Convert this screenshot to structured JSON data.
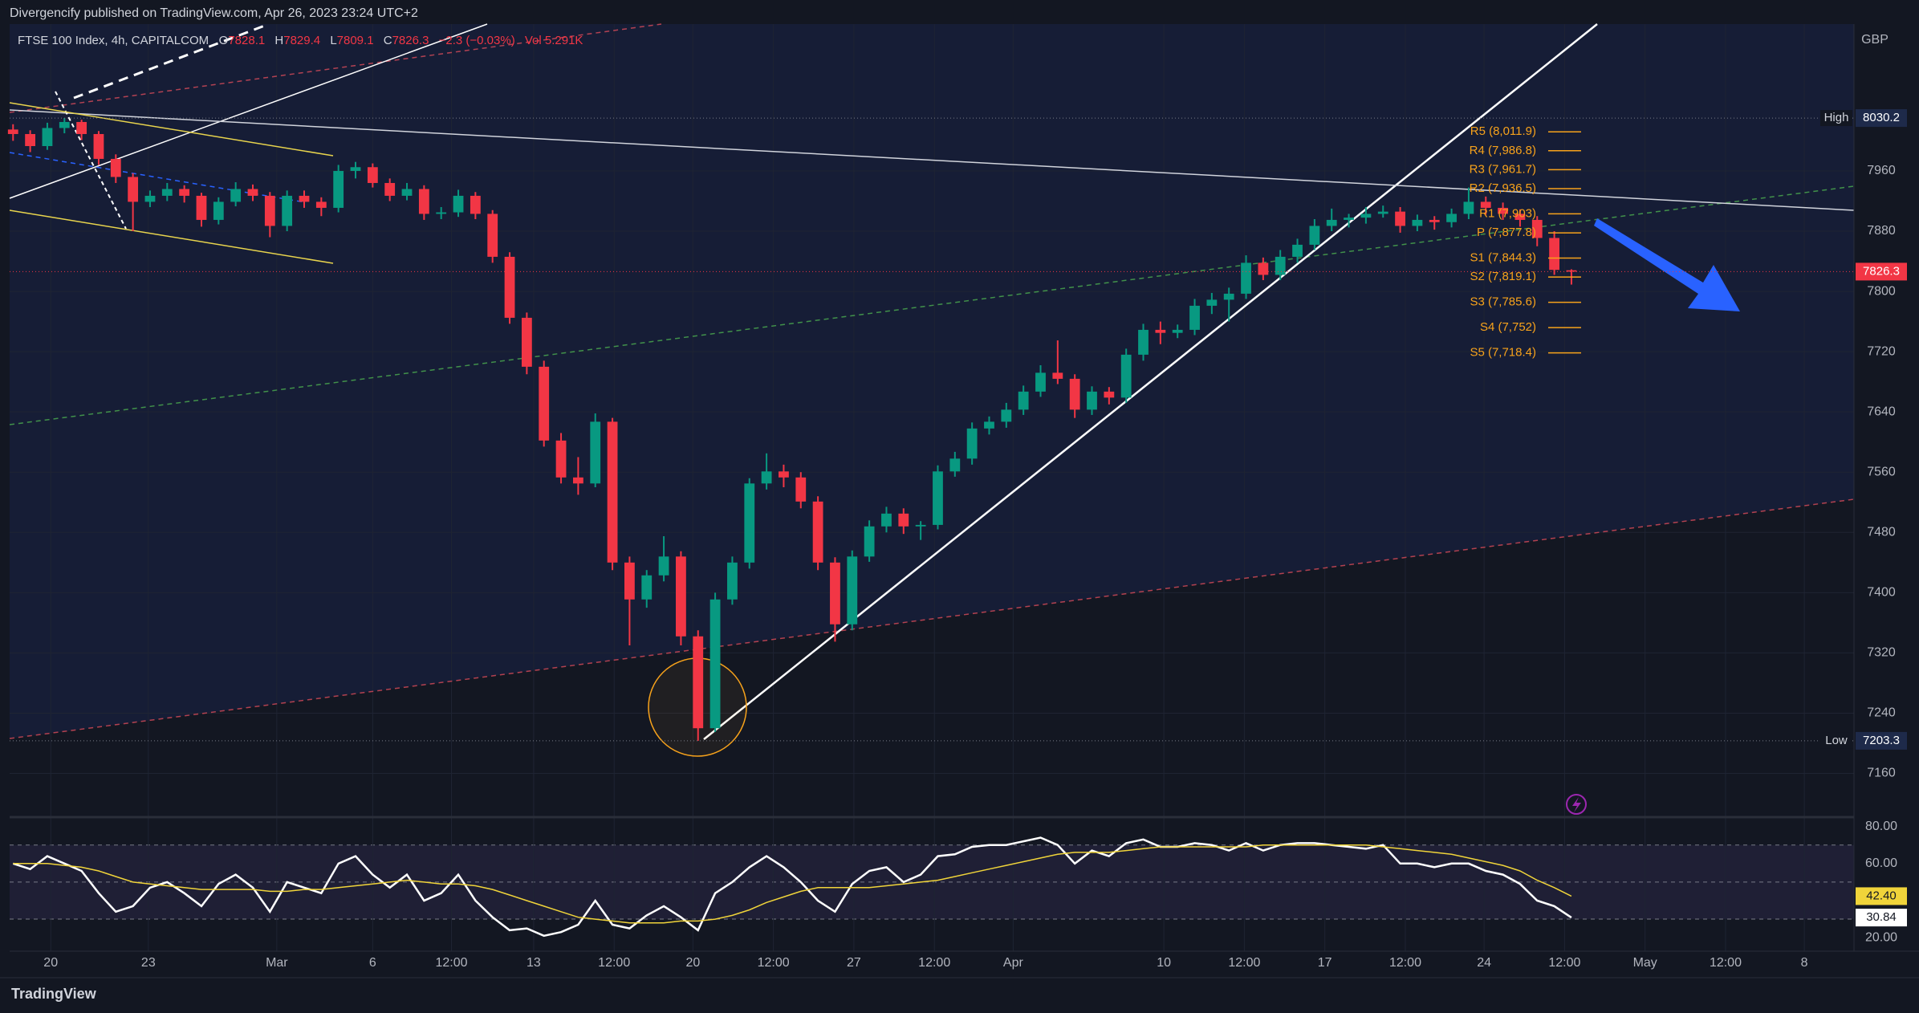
{
  "publisher": "Divergencify published on TradingView.com, Apr 26, 2023 23:24 UTC+2",
  "brand": "TradingView",
  "chart_data": [
    {
      "type": "candlestick",
      "symbol": "FTSE 100 Index, 4h, CAPITALCOM",
      "ohlc_labels": [
        "O",
        "H",
        "L",
        "C"
      ],
      "change": "−2.3 (−0.03%)",
      "volume": "Vol 5.291K",
      "currency": "GBP",
      "colors": {
        "up": "#089981",
        "down": "#f23645"
      },
      "grid": true,
      "xlim": [
        -0.2,
        107.5
      ],
      "ylim": [
        7103,
        8155
      ],
      "yticks": [
        7160,
        7240,
        7320,
        7400,
        7480,
        7560,
        7640,
        7720,
        7800,
        7880,
        7960
      ],
      "high": {
        "label": "High",
        "value": 8030.2
      },
      "low": {
        "label": "Low",
        "value": 7203.3
      },
      "pivots": [
        {
          "label": "R5 (8,011.9)",
          "value": 8011.9
        },
        {
          "label": "R4 (7,986.8)",
          "value": 7986.8
        },
        {
          "label": "R3 (7,961.7)",
          "value": 7961.7
        },
        {
          "label": "R2 (7,936.5)",
          "value": 7936.5
        },
        {
          "label": "R1 (7,903)",
          "value": 7903
        },
        {
          "label": "P (7,877.8)",
          "value": 7877.8
        },
        {
          "label": "S1 (7,844.3)",
          "value": 7844.3
        },
        {
          "label": "S2 (7,819.1)",
          "value": 7819.1
        },
        {
          "label": "S3 (7,785.6)",
          "value": 7785.6
        },
        {
          "label": "S4 (7,752)",
          "value": 7752
        },
        {
          "label": "S5 (7,718.4)",
          "value": 7718.4
        }
      ],
      "candles": [
        [
          8015,
          8022,
          8000,
          8009
        ],
        [
          8009,
          8014,
          7985,
          7993
        ],
        [
          7993,
          8024,
          7988,
          8017
        ],
        [
          8017,
          8030.2,
          8010,
          8025
        ],
        [
          8025,
          8028,
          8001,
          8009
        ],
        [
          8009,
          8013,
          7968,
          7976
        ],
        [
          7976,
          7982,
          7944,
          7952
        ],
        [
          7952,
          7957,
          7880,
          7919
        ],
        [
          7919,
          7934,
          7912,
          7927
        ],
        [
          7927,
          7944,
          7920,
          7936
        ],
        [
          7936,
          7941,
          7918,
          7927
        ],
        [
          7927,
          7931,
          7886,
          7895
        ],
        [
          7895,
          7925,
          7889,
          7919
        ],
        [
          7919,
          7945,
          7913,
          7936
        ],
        [
          7936,
          7942,
          7920,
          7927
        ],
        [
          7927,
          7932,
          7872,
          7887
        ],
        [
          7887,
          7934,
          7880,
          7927
        ],
        [
          7927,
          7934,
          7911,
          7919
        ],
        [
          7919,
          7925,
          7900,
          7911
        ],
        [
          7911,
          7968,
          7905,
          7960
        ],
        [
          7960,
          7972,
          7950,
          7965
        ],
        [
          7965,
          7970,
          7938,
          7944
        ],
        [
          7944,
          7950,
          7920,
          7927
        ],
        [
          7927,
          7944,
          7921,
          7936
        ],
        [
          7936,
          7941,
          7895,
          7903
        ],
        [
          7903,
          7912,
          7896,
          7905
        ],
        [
          7905,
          7935,
          7899,
          7927
        ],
        [
          7927,
          7932,
          7896,
          7903
        ],
        [
          7903,
          7908,
          7838,
          7846
        ],
        [
          7846,
          7852,
          7757,
          7765
        ],
        [
          7765,
          7772,
          7690,
          7700
        ],
        [
          7700,
          7708,
          7594,
          7602
        ],
        [
          7602,
          7612,
          7545,
          7553
        ],
        [
          7553,
          7580,
          7530,
          7545
        ],
        [
          7545,
          7638,
          7540,
          7627
        ],
        [
          7627,
          7632,
          7430,
          7440
        ],
        [
          7440,
          7448,
          7330,
          7391
        ],
        [
          7391,
          7430,
          7380,
          7423
        ],
        [
          7423,
          7475,
          7415,
          7448
        ],
        [
          7448,
          7455,
          7330,
          7342
        ],
        [
          7342,
          7350,
          7203.3,
          7220
        ],
        [
          7220,
          7400,
          7215,
          7391
        ],
        [
          7391,
          7448,
          7384,
          7440
        ],
        [
          7440,
          7552,
          7432,
          7545
        ],
        [
          7545,
          7585,
          7537,
          7561
        ],
        [
          7561,
          7570,
          7540,
          7553
        ],
        [
          7553,
          7560,
          7512,
          7521
        ],
        [
          7521,
          7528,
          7430,
          7440
        ],
        [
          7440,
          7447,
          7335,
          7358
        ],
        [
          7358,
          7456,
          7350,
          7448
        ],
        [
          7448,
          7496,
          7441,
          7488
        ],
        [
          7488,
          7514,
          7480,
          7505
        ],
        [
          7505,
          7512,
          7478,
          7488
        ],
        [
          7488,
          7495,
          7470,
          7490
        ],
        [
          7490,
          7569,
          7484,
          7561
        ],
        [
          7561,
          7587,
          7554,
          7578
        ],
        [
          7578,
          7626,
          7570,
          7618
        ],
        [
          7618,
          7634,
          7610,
          7627
        ],
        [
          7627,
          7652,
          7619,
          7643
        ],
        [
          7643,
          7675,
          7636,
          7667
        ],
        [
          7667,
          7702,
          7660,
          7692
        ],
        [
          7692,
          7735,
          7677,
          7684
        ],
        [
          7684,
          7690,
          7632,
          7643
        ],
        [
          7643,
          7674,
          7636,
          7667
        ],
        [
          7667,
          7673,
          7650,
          7659
        ],
        [
          7659,
          7724,
          7652,
          7716
        ],
        [
          7716,
          7757,
          7708,
          7749
        ],
        [
          7749,
          7760,
          7730,
          7745
        ],
        [
          7745,
          7756,
          7738,
          7749
        ],
        [
          7749,
          7790,
          7742,
          7781
        ],
        [
          7781,
          7798,
          7770,
          7789
        ],
        [
          7789,
          7805,
          7760,
          7797
        ],
        [
          7797,
          7848,
          7790,
          7838
        ],
        [
          7838,
          7845,
          7815,
          7822
        ],
        [
          7822,
          7855,
          7815,
          7846
        ],
        [
          7846,
          7870,
          7838,
          7862
        ],
        [
          7862,
          7896,
          7855,
          7887
        ],
        [
          7887,
          7910,
          7880,
          7895
        ],
        [
          7895,
          7903,
          7885,
          7898
        ],
        [
          7898,
          7912,
          7890,
          7903
        ],
        [
          7903,
          7914,
          7898,
          7906
        ],
        [
          7906,
          7912,
          7878,
          7887
        ],
        [
          7887,
          7902,
          7880,
          7895
        ],
        [
          7895,
          7900,
          7882,
          7892
        ],
        [
          7892,
          7910,
          7885,
          7903
        ],
        [
          7903,
          7938,
          7896,
          7919
        ],
        [
          7919,
          7926,
          7902,
          7911
        ],
        [
          7911,
          7918,
          7895,
          7903
        ],
        [
          7903,
          7909,
          7886,
          7895
        ],
        [
          7895,
          7900,
          7860,
          7871
        ],
        [
          7871,
          7880,
          7822,
          7828.6
        ],
        [
          7828.1,
          7829.4,
          7809.1,
          7826.3
        ]
      ]
    },
    {
      "type": "line",
      "grid": true,
      "xlim": [
        -0.2,
        107.5
      ],
      "ylim": [
        12.7,
        84.6
      ],
      "yticks": [
        {
          "value": 80,
          "label": "80.00"
        },
        {
          "value": 60,
          "label": "60.00"
        },
        {
          "value": 20,
          "label": "20.00"
        }
      ],
      "levels": [
        70,
        50,
        30
      ],
      "xticks": [
        {
          "value": 2.2,
          "label": "20"
        },
        {
          "value": 7.9,
          "label": "23"
        },
        {
          "value": 15.4,
          "label": "Mar"
        },
        {
          "value": 21,
          "label": "6"
        },
        {
          "value": 25.6,
          "label": "12:00"
        },
        {
          "value": 30.4,
          "label": "13"
        },
        {
          "value": 35.1,
          "label": "12:00"
        },
        {
          "value": 39.7,
          "label": "20"
        },
        {
          "value": 44.4,
          "label": "12:00"
        },
        {
          "value": 49.1,
          "label": "27"
        },
        {
          "value": 53.8,
          "label": "12:00"
        },
        {
          "value": 58.4,
          "label": "Apr"
        },
        {
          "value": 67.2,
          "label": "10"
        },
        {
          "value": 71.9,
          "label": "12:00"
        },
        {
          "value": 76.6,
          "label": "17"
        },
        {
          "value": 81.3,
          "label": "12:00"
        },
        {
          "value": 85.9,
          "label": "24"
        },
        {
          "value": 90.6,
          "label": "12:00"
        },
        {
          "value": 95.3,
          "label": "May"
        },
        {
          "value": 100,
          "label": "12:00"
        },
        {
          "value": 104.6,
          "label": "8"
        }
      ],
      "series": [
        {
          "color": "#ffffff",
          "values": [
            60,
            57,
            64,
            60,
            56,
            44,
            34,
            37,
            47,
            50,
            44,
            37,
            49,
            54,
            47,
            34,
            50,
            47,
            44,
            60,
            64,
            54,
            47,
            54,
            40,
            44,
            54,
            40,
            31,
            24,
            25,
            21,
            23,
            27,
            40,
            27,
            25,
            32,
            37,
            31,
            24,
            44,
            50,
            58,
            64,
            58,
            50,
            40,
            34,
            49,
            56,
            58,
            50,
            54,
            64,
            65,
            69,
            70,
            70,
            72,
            74,
            70,
            60,
            67,
            64,
            71,
            73,
            69,
            69,
            71,
            70,
            67,
            71,
            67,
            70,
            71,
            71,
            70,
            69,
            68,
            70,
            60,
            60,
            58,
            60,
            60,
            56,
            54,
            49,
            40,
            37,
            30.84
          ],
          "value_labels": [
            null,
            null,
            null,
            null,
            null,
            null,
            null,
            null,
            null,
            null,
            null,
            null,
            null,
            null,
            null,
            null,
            null,
            null,
            null,
            null,
            null,
            null,
            null,
            null,
            null,
            null,
            null,
            null,
            null,
            null,
            null,
            null,
            null,
            null,
            null,
            null,
            null,
            null,
            null,
            null,
            null,
            null,
            null,
            null,
            null,
            null,
            null,
            null,
            null,
            null,
            null,
            null,
            null,
            null,
            null,
            null,
            null,
            null,
            null,
            null,
            null,
            null,
            null,
            null,
            null,
            null,
            null,
            null,
            null,
            null,
            null,
            null,
            null,
            null,
            null,
            null,
            null,
            null,
            null,
            null,
            null,
            null,
            null,
            null,
            null,
            null,
            null,
            null,
            null,
            null,
            null,
            "30.84"
          ]
        },
        {
          "color": "#f0d43a",
          "values": [
            60,
            60,
            60,
            59,
            58,
            56,
            53,
            50,
            49,
            48,
            47,
            46,
            46,
            46,
            46,
            45,
            45,
            46,
            46,
            47,
            48,
            49,
            50,
            51,
            50,
            49,
            49,
            48,
            46,
            43,
            40,
            37,
            34,
            31,
            30,
            29,
            28,
            28,
            28,
            29,
            29,
            30,
            32,
            35,
            39,
            42,
            45,
            47,
            47,
            47,
            47,
            48,
            49,
            50,
            51,
            53,
            55,
            57,
            59,
            61,
            63,
            65,
            66,
            66,
            66,
            67,
            68,
            69,
            69,
            69,
            69,
            69,
            69,
            70,
            70,
            70,
            70,
            70,
            70,
            70,
            69,
            68,
            67,
            66,
            65,
            63,
            61,
            59,
            56,
            51,
            47,
            42.4
          ],
          "value_labels": [
            null,
            null,
            null,
            null,
            null,
            null,
            null,
            null,
            null,
            null,
            null,
            null,
            null,
            null,
            null,
            null,
            null,
            null,
            null,
            null,
            null,
            null,
            null,
            null,
            null,
            null,
            null,
            null,
            null,
            null,
            null,
            null,
            null,
            null,
            null,
            null,
            null,
            null,
            null,
            null,
            null,
            null,
            null,
            null,
            null,
            null,
            null,
            null,
            null,
            null,
            null,
            null,
            null,
            null,
            null,
            null,
            null,
            null,
            null,
            null,
            null,
            null,
            null,
            null,
            null,
            null,
            null,
            null,
            null,
            null,
            null,
            null,
            null,
            null,
            null,
            null,
            null,
            null,
            null,
            null,
            null,
            null,
            null,
            null,
            null,
            null,
            null,
            null,
            null,
            null,
            null,
            "42.40"
          ]
        }
      ]
    }
  ]
}
